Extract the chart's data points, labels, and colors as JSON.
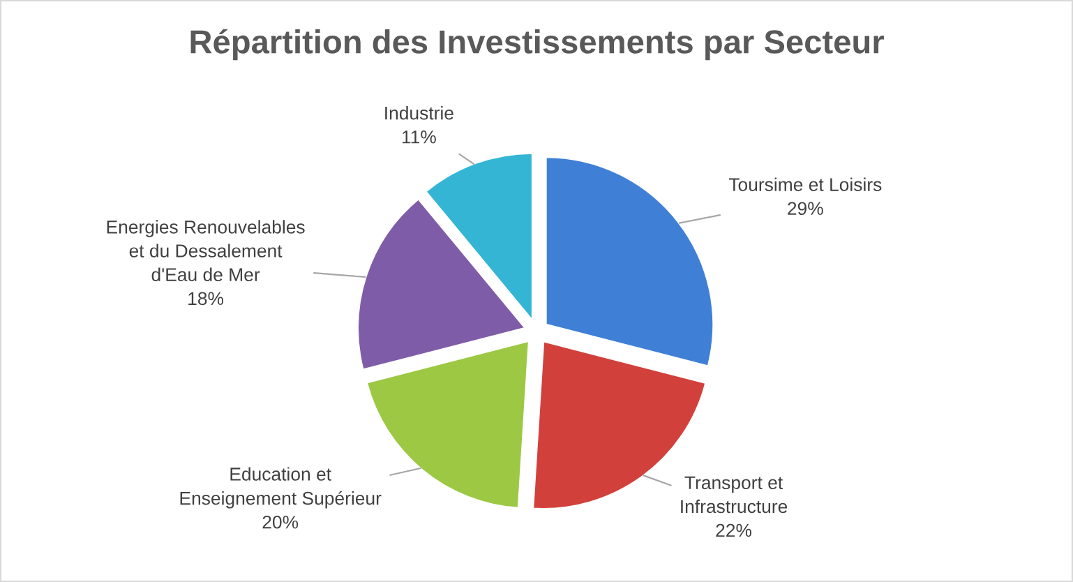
{
  "chart_data": {
    "type": "pie",
    "title": "Répartition des Investissements par Secteur",
    "categories": [
      "Toursime et Loisirs",
      "Transport et Infrastructure",
      "Education et Enseignement Supérieur",
      "Energies Renouvelables et du Dessalement d'Eau de Mer",
      "Industrie"
    ],
    "values": [
      29,
      22,
      20,
      18,
      11
    ],
    "value_labels": [
      "29%",
      "22%",
      "20%",
      "18%",
      "11%"
    ],
    "colors": [
      "#3f7fd6",
      "#d2403c",
      "#9cc843",
      "#7f5ca8",
      "#34b5d4"
    ],
    "legend": false
  }
}
